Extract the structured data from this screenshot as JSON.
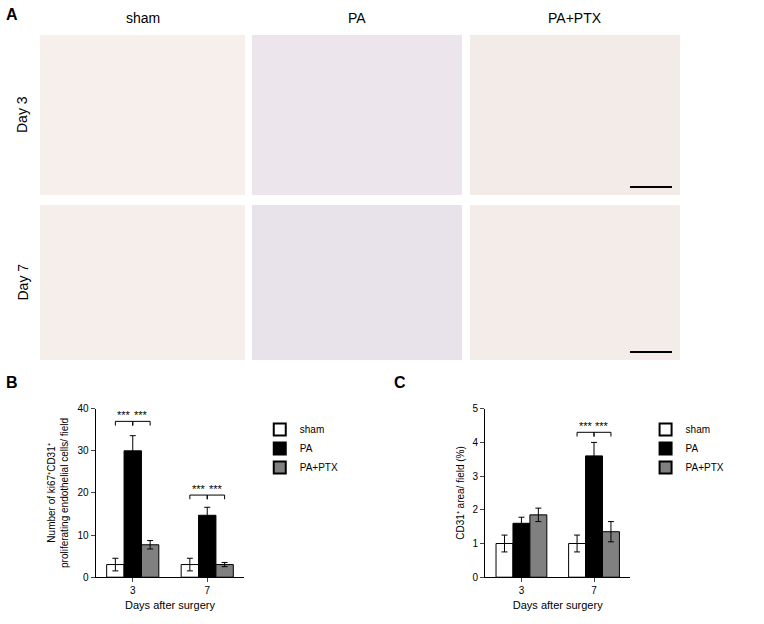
{
  "panel_a": {
    "label": "A",
    "columns": [
      "sham",
      "PA",
      "PA+PTX"
    ],
    "rows": [
      "Day 3",
      "Day 7"
    ]
  },
  "chart_data": [
    {
      "type": "bar",
      "panel": "B",
      "x_label": "Days after surgery",
      "y_label": [
        "Number of ki67⁺CD31⁺",
        "proliferating endothelial cells/ field"
      ],
      "categories": [
        "3",
        "7"
      ],
      "series": [
        {
          "name": "sham",
          "color": "#ffffff",
          "values": [
            3.0,
            3.0
          ],
          "errors": [
            1.5,
            1.5
          ]
        },
        {
          "name": "PA",
          "color": "#000000",
          "values": [
            30.0,
            14.7
          ],
          "errors": [
            3.6,
            1.9
          ]
        },
        {
          "name": "PA+PTX",
          "color": "#808080",
          "values": [
            7.7,
            3.0
          ],
          "errors": [
            1.0,
            0.5
          ]
        }
      ],
      "significance": [
        {
          "category": "3",
          "from": "sham",
          "to": "PA",
          "y": 37,
          "text": "***"
        },
        {
          "category": "3",
          "from": "PA",
          "to": "PA+PTX",
          "y": 37,
          "text": "***"
        },
        {
          "category": "7",
          "from": "sham",
          "to": "PA",
          "y": 19.5,
          "text": "***"
        },
        {
          "category": "7",
          "from": "PA",
          "to": "PA+PTX",
          "y": 19.5,
          "text": "***"
        }
      ],
      "ylim": [
        0,
        40
      ],
      "yticks": [
        0,
        10,
        20,
        30,
        40
      ],
      "grid": false,
      "legend": "right"
    },
    {
      "type": "bar",
      "panel": "C",
      "x_label": "Days after surgery",
      "y_label": [
        "CD31⁺ area/ field (%)"
      ],
      "categories": [
        "3",
        "7"
      ],
      "series": [
        {
          "name": "sham",
          "color": "#ffffff",
          "values": [
            1.0,
            1.0
          ],
          "errors": [
            0.25,
            0.25
          ]
        },
        {
          "name": "PA",
          "color": "#000000",
          "values": [
            1.6,
            3.6
          ],
          "errors": [
            0.18,
            0.4
          ]
        },
        {
          "name": "PA+PTX",
          "color": "#808080",
          "values": [
            1.85,
            1.35
          ],
          "errors": [
            0.2,
            0.3
          ]
        }
      ],
      "significance": [
        {
          "category": "7",
          "from": "sham",
          "to": "PA",
          "y": 4.3,
          "text": "***"
        },
        {
          "category": "7",
          "from": "PA",
          "to": "PA+PTX",
          "y": 4.3,
          "text": "***"
        }
      ],
      "ylim": [
        0,
        5
      ],
      "yticks": [
        0,
        1,
        2,
        3,
        4,
        5
      ],
      "grid": false,
      "legend": "right"
    }
  ]
}
